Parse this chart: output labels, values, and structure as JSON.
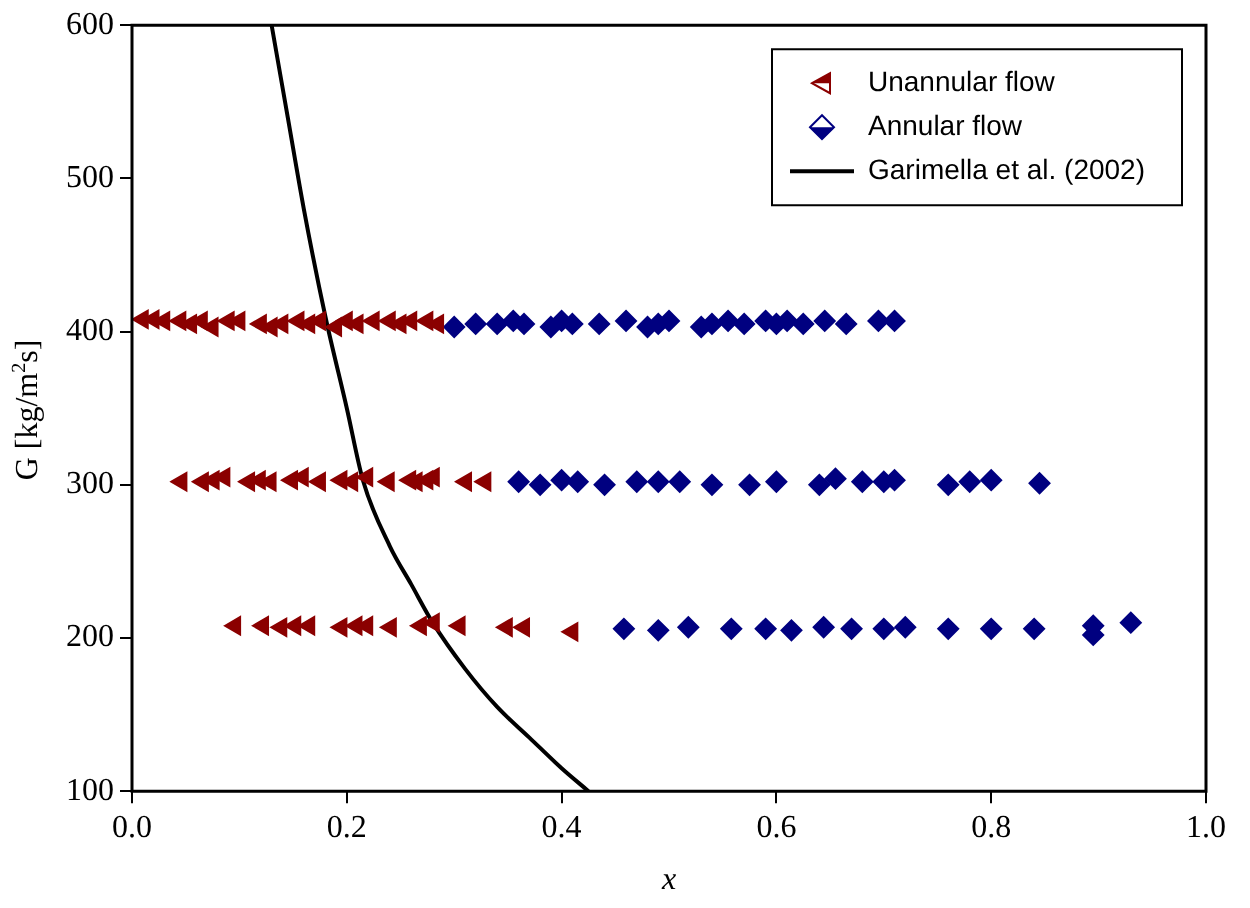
{
  "chart_data": {
    "type": "scatter",
    "xlabel": "x",
    "ylabel": "G [kg/m$^{2}$s]",
    "xlim": [
      0,
      1
    ],
    "xticks": [
      {
        "value": 0,
        "label": "0.0"
      },
      {
        "value": 0.2,
        "label": "0.2"
      },
      {
        "value": 0.4,
        "label": "0.4"
      },
      {
        "value": 0.6,
        "label": "0.6"
      },
      {
        "value": 0.8,
        "label": "0.8"
      },
      {
        "value": 1,
        "label": "1.0"
      }
    ],
    "ylim": [
      100,
      600
    ],
    "yticks": [
      100,
      200,
      300,
      400,
      500,
      600
    ],
    "legend": "top right",
    "series": [
      {
        "name": "Unannular flow",
        "color": "#8b0000",
        "marker": "triangle",
        "x": [
          0.01,
          0.02,
          0.03,
          0.045,
          0.055,
          0.065,
          0.075,
          0.09,
          0.1,
          0.12,
          0.13,
          0.14,
          0.155,
          0.165,
          0.175,
          0.19,
          0.2,
          0.21,
          0.225,
          0.24,
          0.25,
          0.26,
          0.275,
          0.285,
          0.046,
          0.066,
          0.076,
          0.086,
          0.109,
          0.119,
          0.129,
          0.149,
          0.159,
          0.175,
          0.195,
          0.205,
          0.219,
          0.239,
          0.259,
          0.265,
          0.275,
          0.281,
          0.311,
          0.329,
          0.096,
          0.122,
          0.139,
          0.152,
          0.165,
          0.195,
          0.209,
          0.219,
          0.241,
          0.269,
          0.281,
          0.305,
          0.349,
          0.365,
          0.41
        ],
        "values": [
          408,
          408,
          407,
          407,
          405,
          407,
          403,
          407,
          407,
          405,
          403,
          405,
          407,
          405,
          407,
          403,
          407,
          405,
          407,
          407,
          405,
          407,
          407,
          405,
          302,
          302,
          303,
          305,
          302,
          303,
          302,
          303,
          305,
          302,
          303,
          302,
          305,
          302,
          303,
          302,
          303,
          305,
          302,
          302,
          208,
          208,
          207,
          208,
          208,
          207,
          208,
          208,
          207,
          208,
          210,
          208,
          207,
          207,
          204
        ]
      },
      {
        "name": "Annular flow",
        "color": "#000080",
        "marker": "diamond",
        "x": [
          0.3,
          0.32,
          0.34,
          0.355,
          0.365,
          0.39,
          0.4,
          0.41,
          0.435,
          0.46,
          0.48,
          0.49,
          0.5,
          0.53,
          0.54,
          0.555,
          0.57,
          0.59,
          0.6,
          0.61,
          0.625,
          0.645,
          0.665,
          0.695,
          0.71,
          0.36,
          0.38,
          0.4,
          0.415,
          0.44,
          0.47,
          0.49,
          0.51,
          0.54,
          0.575,
          0.6,
          0.64,
          0.655,
          0.68,
          0.7,
          0.71,
          0.76,
          0.78,
          0.8,
          0.845,
          0.458,
          0.49,
          0.518,
          0.558,
          0.59,
          0.614,
          0.644,
          0.67,
          0.7,
          0.72,
          0.76,
          0.8,
          0.84,
          0.895,
          0.895,
          0.93
        ],
        "values": [
          403,
          405,
          405,
          407,
          405,
          403,
          407,
          405,
          405,
          407,
          403,
          405,
          407,
          403,
          405,
          407,
          405,
          407,
          405,
          407,
          405,
          407,
          405,
          407,
          407,
          302,
          300,
          303,
          302,
          300,
          302,
          302,
          302,
          300,
          300,
          302,
          300,
          304,
          302,
          302,
          303,
          300,
          302,
          303,
          301,
          206,
          205,
          207,
          206,
          206,
          205,
          207,
          206,
          206,
          207,
          206,
          206,
          206,
          208,
          202,
          210
        ]
      },
      {
        "name": "Garimella et al. (2002)",
        "type": "line",
        "color": "#000000",
        "marker": "none",
        "x": [
          0.13,
          0.145,
          0.16,
          0.18,
          0.2,
          0.215,
          0.24,
          0.26,
          0.28,
          0.31,
          0.34,
          0.37,
          0.4,
          0.425
        ],
        "values": [
          600,
          540,
          480,
          410,
          350,
          303,
          260,
          235,
          210,
          180,
          155,
          135,
          115,
          100
        ]
      }
    ]
  }
}
